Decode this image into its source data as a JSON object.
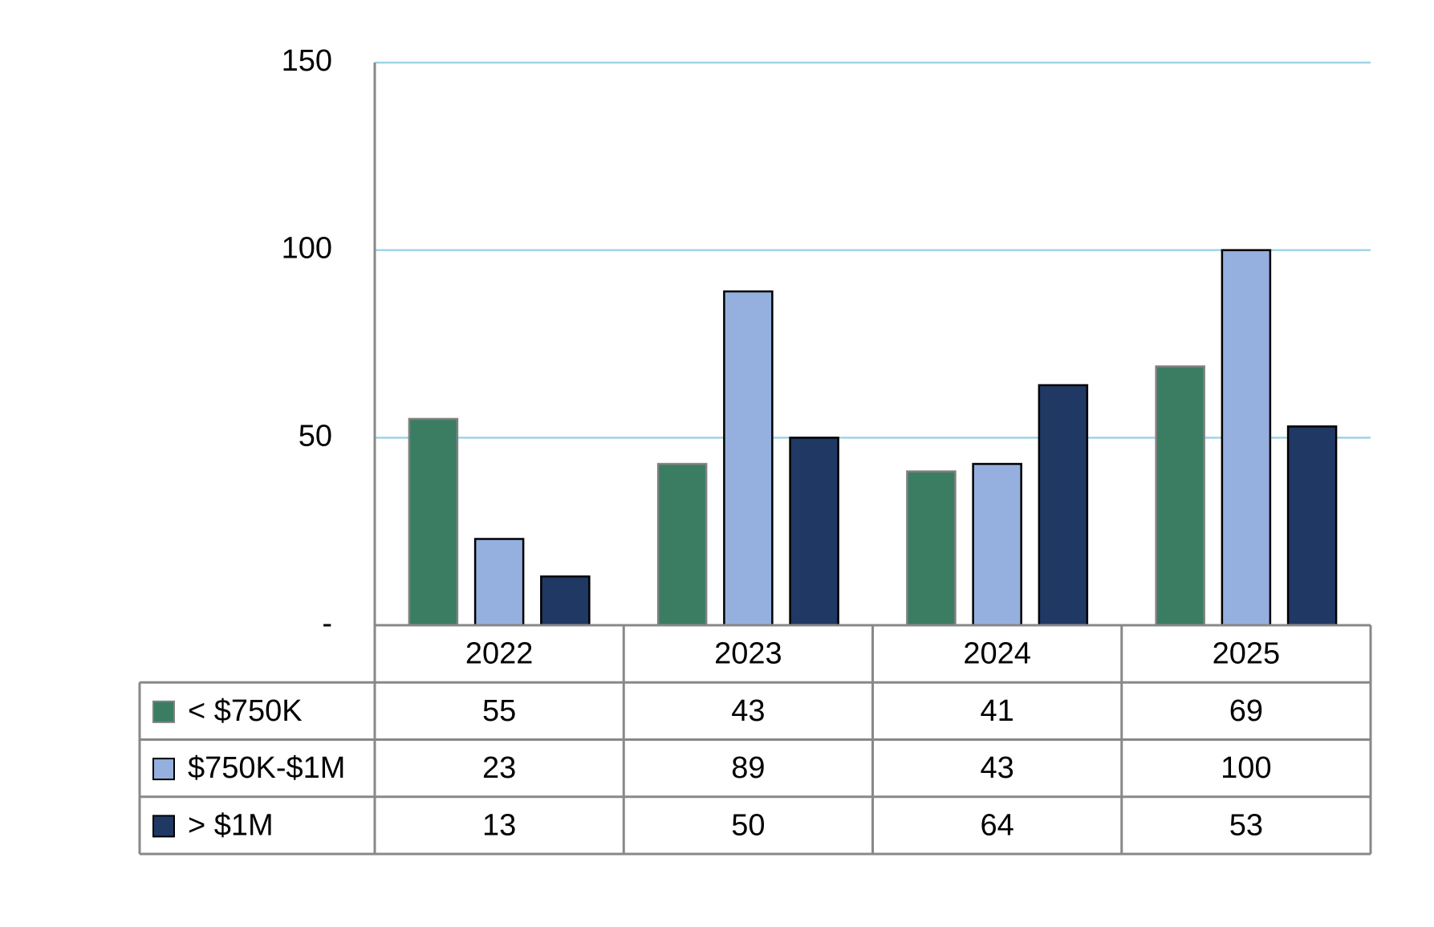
{
  "chart_data": {
    "type": "bar",
    "categories": [
      "2022",
      "2023",
      "2024",
      "2025"
    ],
    "series": [
      {
        "name": "< $750K",
        "color": "#3a7d63",
        "values": [
          55,
          43,
          41,
          69
        ]
      },
      {
        "name": "$750K-$1M",
        "color": "#95b0de",
        "values": [
          23,
          89,
          43,
          100
        ]
      },
      {
        "name": "> $1M",
        "color": "#203864",
        "values": [
          13,
          50,
          64,
          53
        ]
      }
    ],
    "ylim": [
      0,
      150
    ],
    "yticks": [
      {
        "value": 0,
        "label": "-"
      },
      50,
      100,
      150
    ],
    "grid": true,
    "grid_color": "#9fd3e6",
    "data_table": true
  }
}
